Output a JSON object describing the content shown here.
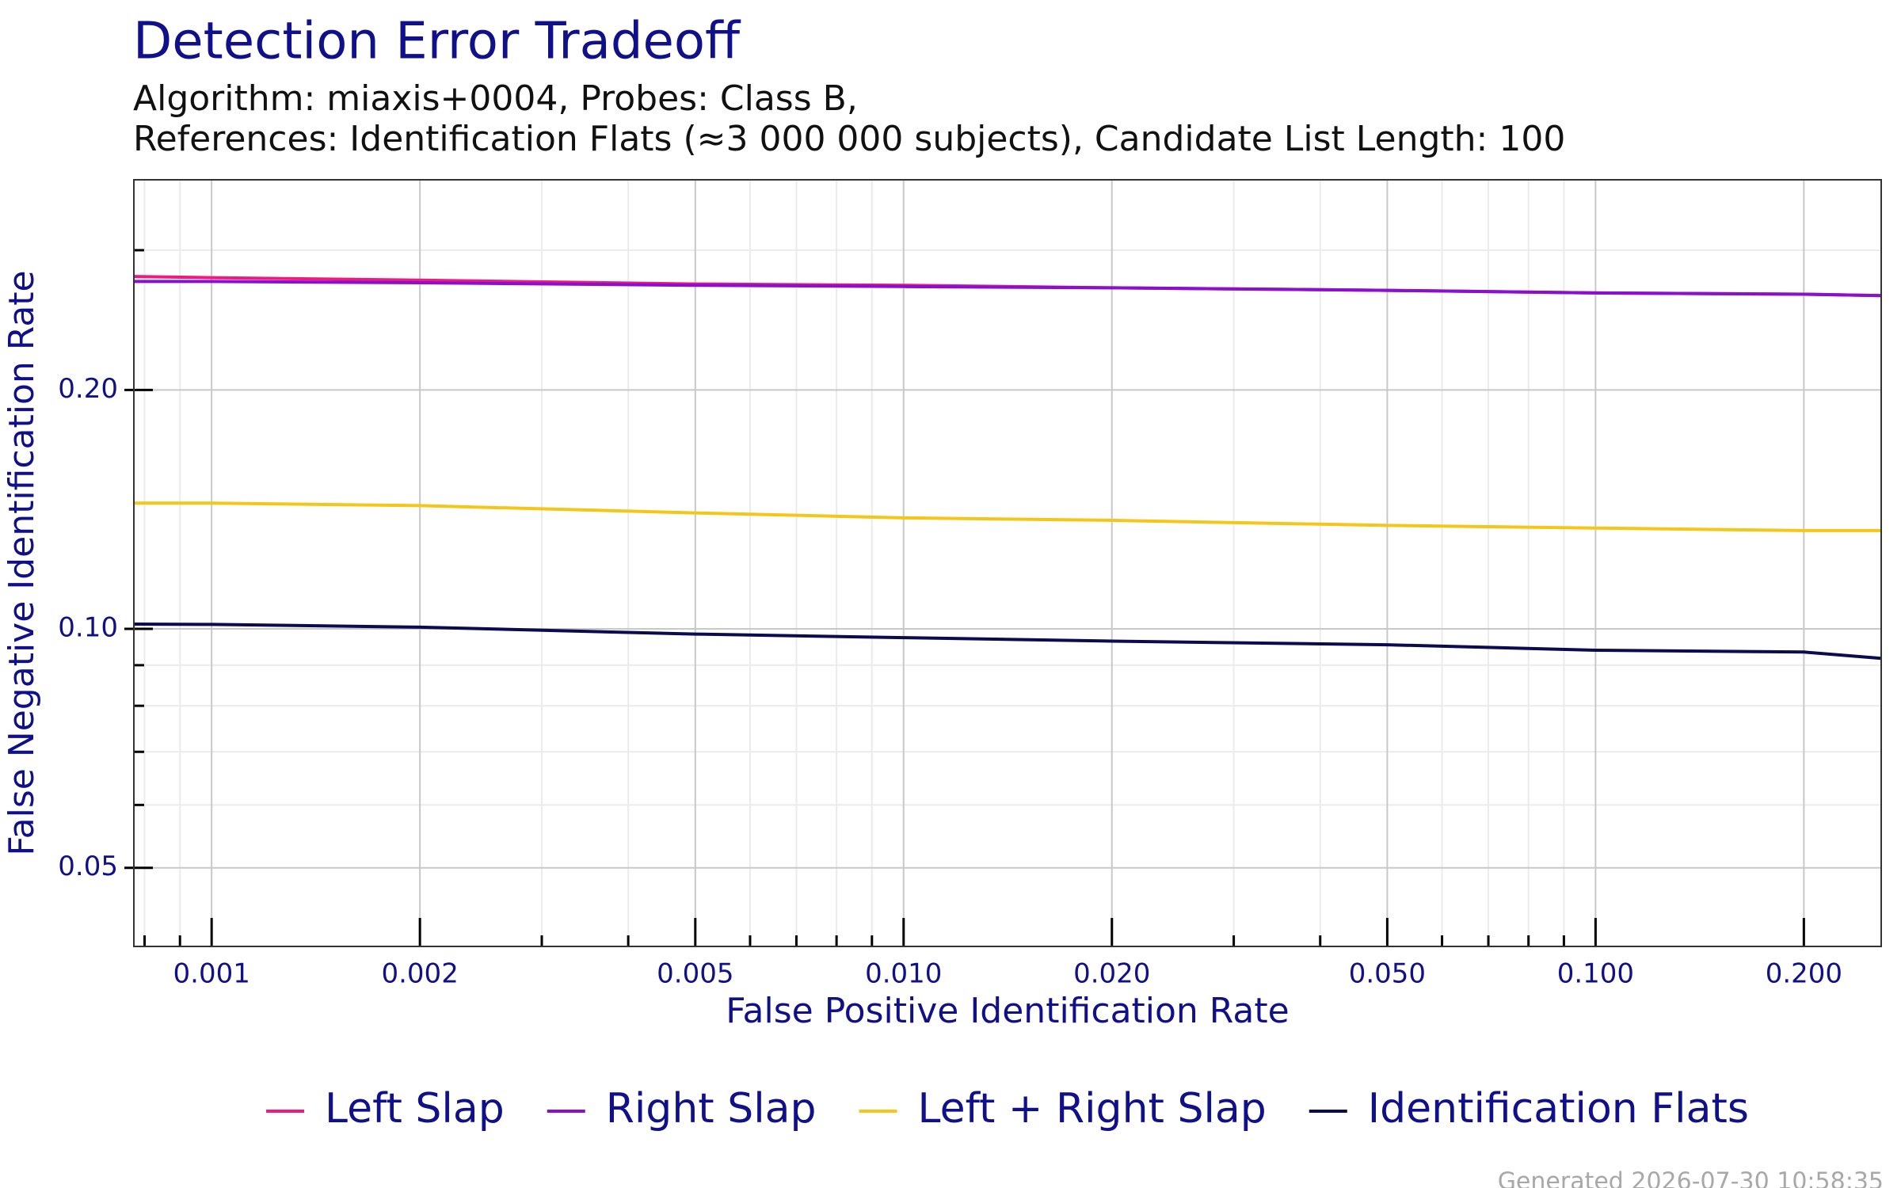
{
  "chart_data": {
    "type": "line",
    "title": "Detection Error Tradeoff",
    "subtitle": [
      "Algorithm: miaxis+0004, Probes: Class B,",
      "References: Identification Flats (≈3 000 000 subjects), Candidate List Length: 100"
    ],
    "x_label": "False Positive Identification Rate",
    "y_label": "False Negative Identification Rate",
    "x_scale": "log",
    "y_scale": "log",
    "grid": true,
    "legend": "bottom",
    "xlim": [
      0.000772,
      0.2587
    ],
    "ylim": [
      0.0398,
      0.368
    ],
    "xticks": [
      0.001,
      0.002,
      0.005,
      {
        "value": 0.01,
        "label": "0.010"
      },
      {
        "value": 0.02,
        "label": "0.020"
      },
      {
        "value": 0.05,
        "label": "0.050"
      },
      {
        "value": 0.1,
        "label": "0.100"
      },
      {
        "value": 0.2,
        "label": "0.200"
      }
    ],
    "yticks": [
      0.05,
      {
        "value": 0.1,
        "label": "0.10"
      },
      {
        "value": 0.2,
        "label": "0.20"
      }
    ],
    "xminor_ticks": [
      0.0008,
      0.0009,
      0.003,
      0.004,
      0.006,
      0.007,
      0.008,
      0.009,
      0.03,
      0.04,
      0.06,
      0.07,
      0.08,
      0.09
    ],
    "yminor_ticks": [
      0.06,
      0.07,
      0.08,
      0.09,
      0.3
    ],
    "x": [
      0.000772,
      0.001,
      0.002,
      0.005,
      0.01,
      0.02,
      0.05,
      0.1,
      0.2,
      0.2587
    ],
    "series": [
      {
        "name": "Left Slap",
        "color": "#f0197d",
        "values": [
          0.278,
          0.277,
          0.275,
          0.272,
          0.271,
          0.269,
          0.267,
          0.265,
          0.264,
          0.263
        ]
      },
      {
        "name": "Right Slap",
        "color": "#8a10d0",
        "values": [
          0.274,
          0.274,
          0.273,
          0.271,
          0.27,
          0.269,
          0.267,
          0.265,
          0.264,
          0.263
        ]
      },
      {
        "name": "Left + Right Slap",
        "color": "#f5c518",
        "values": [
          0.144,
          0.144,
          0.143,
          0.14,
          0.138,
          0.137,
          0.135,
          0.134,
          0.133,
          0.133
        ]
      },
      {
        "name": "Identification Flats",
        "color": "#0b0b4f",
        "values": [
          0.1014,
          0.1013,
          0.1005,
          0.0985,
          0.0975,
          0.0965,
          0.0955,
          0.094,
          0.0935,
          0.0918
        ]
      }
    ],
    "footer": "Generated 2026-07-30 10:58:35"
  }
}
